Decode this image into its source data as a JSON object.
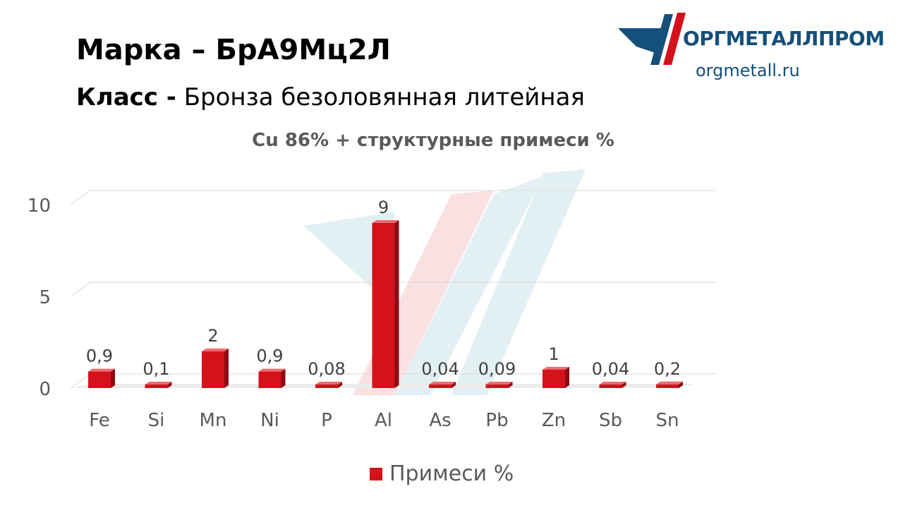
{
  "header": {
    "grade_label": "Марка",
    "grade_dash": "–",
    "grade_value": "БрА9Мц2Л",
    "class_label": "Класс -",
    "class_value": "Бронза безоловянная литейная"
  },
  "logo": {
    "name": "ОРГМЕТАЛЛПРОМ",
    "url": "orgmetall.ru",
    "colors": {
      "blue": "#14507a",
      "red": "#d4121c",
      "teal": "#1d8aa0"
    }
  },
  "colors": {
    "bar": "#d4121c",
    "axis_text": "#595959",
    "grid": "#d9d9d9"
  },
  "chart_data": {
    "type": "bar",
    "title": "Cu 86% + структурные примеси %",
    "categories": [
      "Fe",
      "Si",
      "Mn",
      "Ni",
      "P",
      "Al",
      "As",
      "Pb",
      "Zn",
      "Sb",
      "Sn"
    ],
    "series": [
      {
        "name": "Примеси %",
        "values": [
          0.9,
          0.1,
          2,
          0.9,
          0.08,
          9,
          0.04,
          0.09,
          1,
          0.04,
          0.2
        ],
        "labels": [
          "0,9",
          "0,1",
          "2",
          "0,9",
          "0,08",
          "9",
          "0,04",
          "0,09",
          "1",
          "0,04",
          "0,2"
        ]
      }
    ],
    "yticks": [
      "0",
      "5",
      "10"
    ],
    "ylim": [
      0,
      10
    ],
    "grid": true,
    "legend": "bottom"
  }
}
